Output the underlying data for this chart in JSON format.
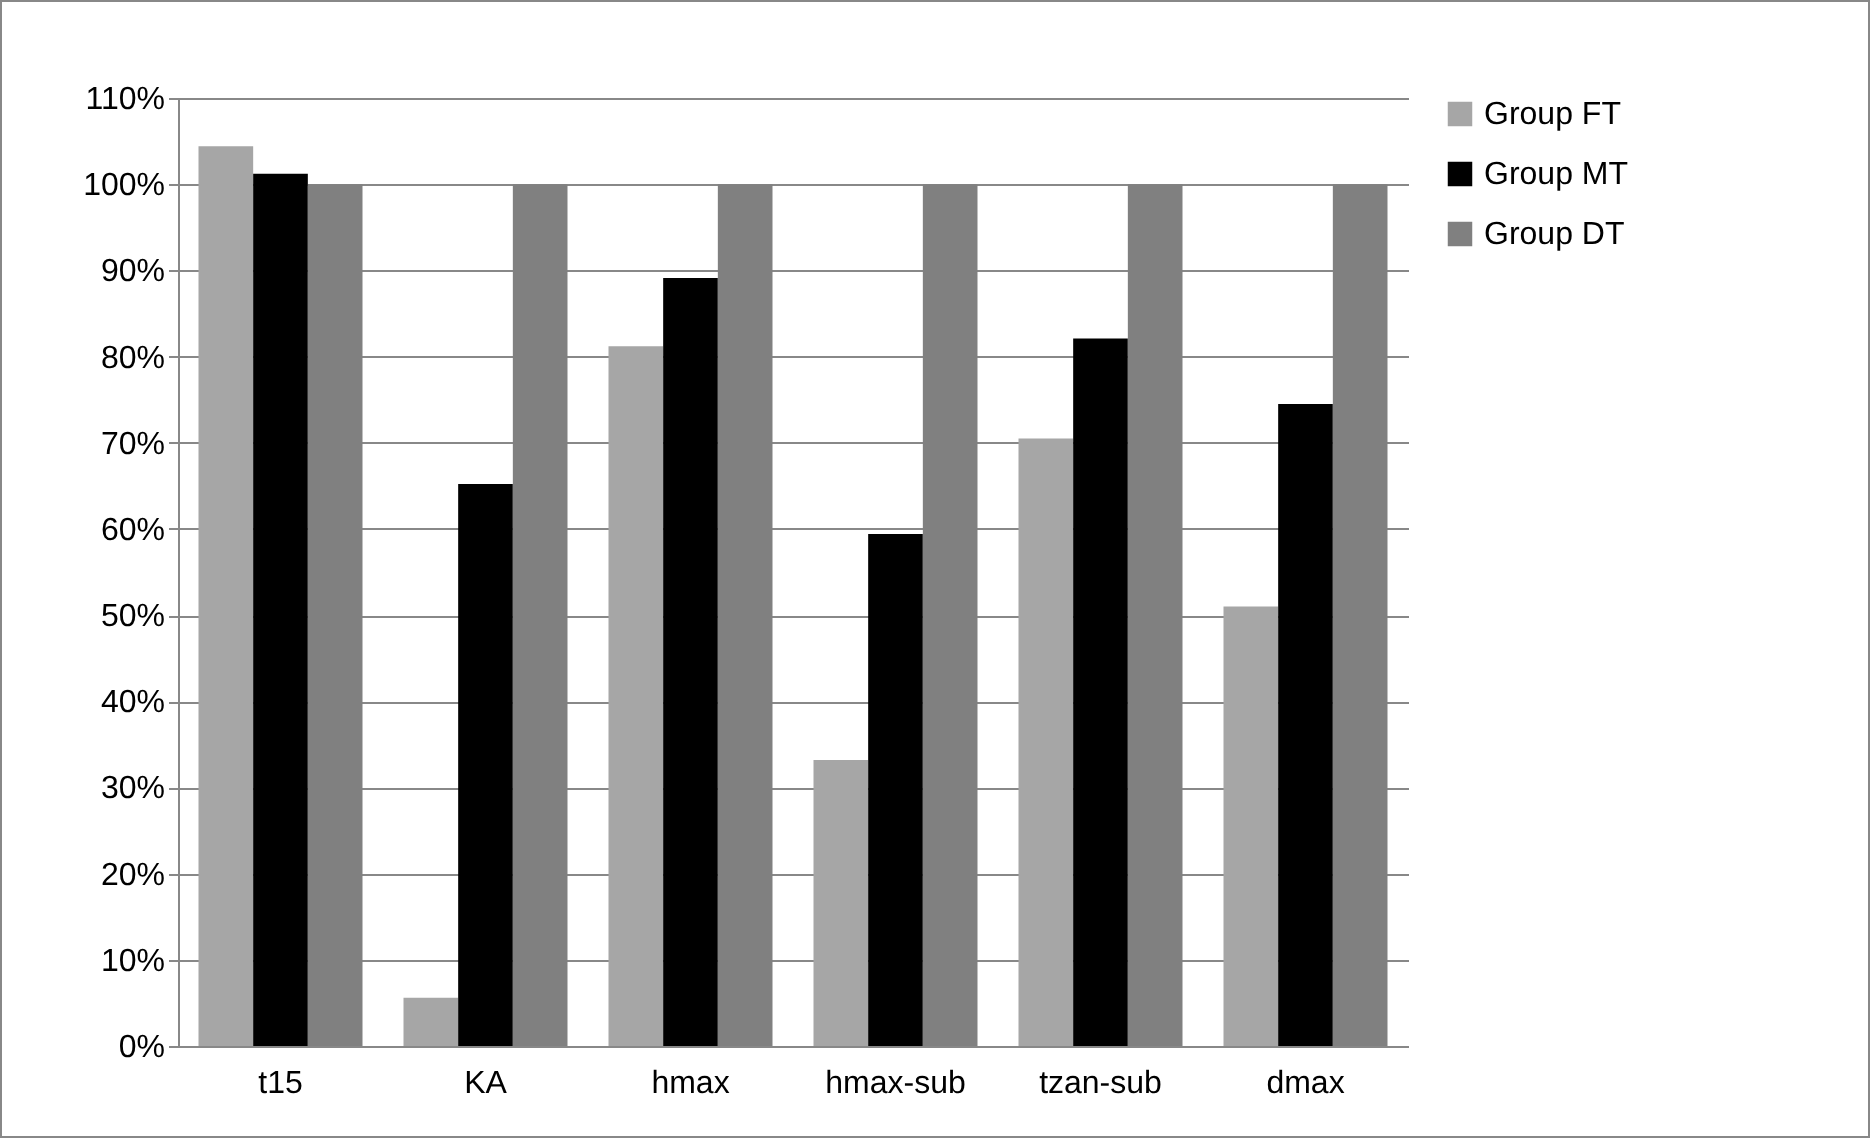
{
  "chart_data": {
    "type": "bar",
    "categories": [
      "t15",
      "KA",
      "hmax",
      "hmax-sub",
      "tzan-sub",
      "dmax"
    ],
    "series": [
      {
        "name": "Group FT",
        "color": "#a6a6a6",
        "values": [
          104.4,
          5.6,
          81.2,
          33.2,
          70.5,
          51
        ]
      },
      {
        "name": "Group MT",
        "color": "#000000",
        "values": [
          101.2,
          65.2,
          89.1,
          59.4,
          82.1,
          74.5
        ]
      },
      {
        "name": "Group DT",
        "color": "#808080",
        "values": [
          100,
          100,
          100,
          100,
          100,
          100
        ]
      }
    ],
    "ylim": [
      0,
      110
    ],
    "yticks": [
      {
        "value": 0,
        "label": "0%"
      },
      {
        "value": 10,
        "label": "10%"
      },
      {
        "value": 20,
        "label": "20%"
      },
      {
        "value": 30,
        "label": "30%"
      },
      {
        "value": 40,
        "label": "40%"
      },
      {
        "value": 50,
        "label": "50%"
      },
      {
        "value": 60,
        "label": "60%"
      },
      {
        "value": 70,
        "label": "70%"
      },
      {
        "value": 80,
        "label": "80%"
      },
      {
        "value": 90,
        "label": "90%"
      },
      {
        "value": 100,
        "label": "100%"
      },
      {
        "value": 110,
        "label": "110%"
      }
    ],
    "grid": "y",
    "legend": "right"
  }
}
